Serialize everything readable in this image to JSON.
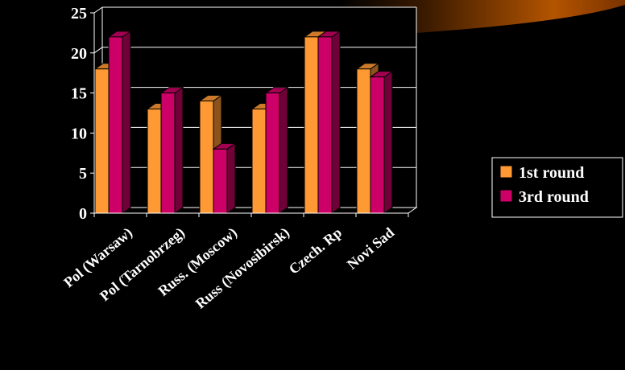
{
  "chart_data": {
    "type": "bar",
    "categories": [
      "Pol (Warsaw)",
      "Pol (Tarnobrzeg)",
      "Russ. (Moscow)",
      "Russ (Novosibirsk)",
      "Czech. Rp",
      "Novi Sad"
    ],
    "series": [
      {
        "name": "1st round",
        "values": [
          18,
          13,
          14,
          13,
          22,
          18
        ],
        "color": "#ff9933"
      },
      {
        "name": "3rd round",
        "values": [
          22,
          15,
          8,
          15,
          22,
          17
        ],
        "color": "#cc0066"
      }
    ],
    "y_ticks": [
      "0",
      "5",
      "10",
      "15",
      "20",
      "25"
    ],
    "ylim": [
      0,
      25
    ],
    "grid": true,
    "legend_placement": "right",
    "colors": {
      "background": "#000000",
      "wall": "#000000",
      "grid": "#ffffff",
      "text": "#ffffff",
      "banner_accent": "#b35400"
    }
  }
}
